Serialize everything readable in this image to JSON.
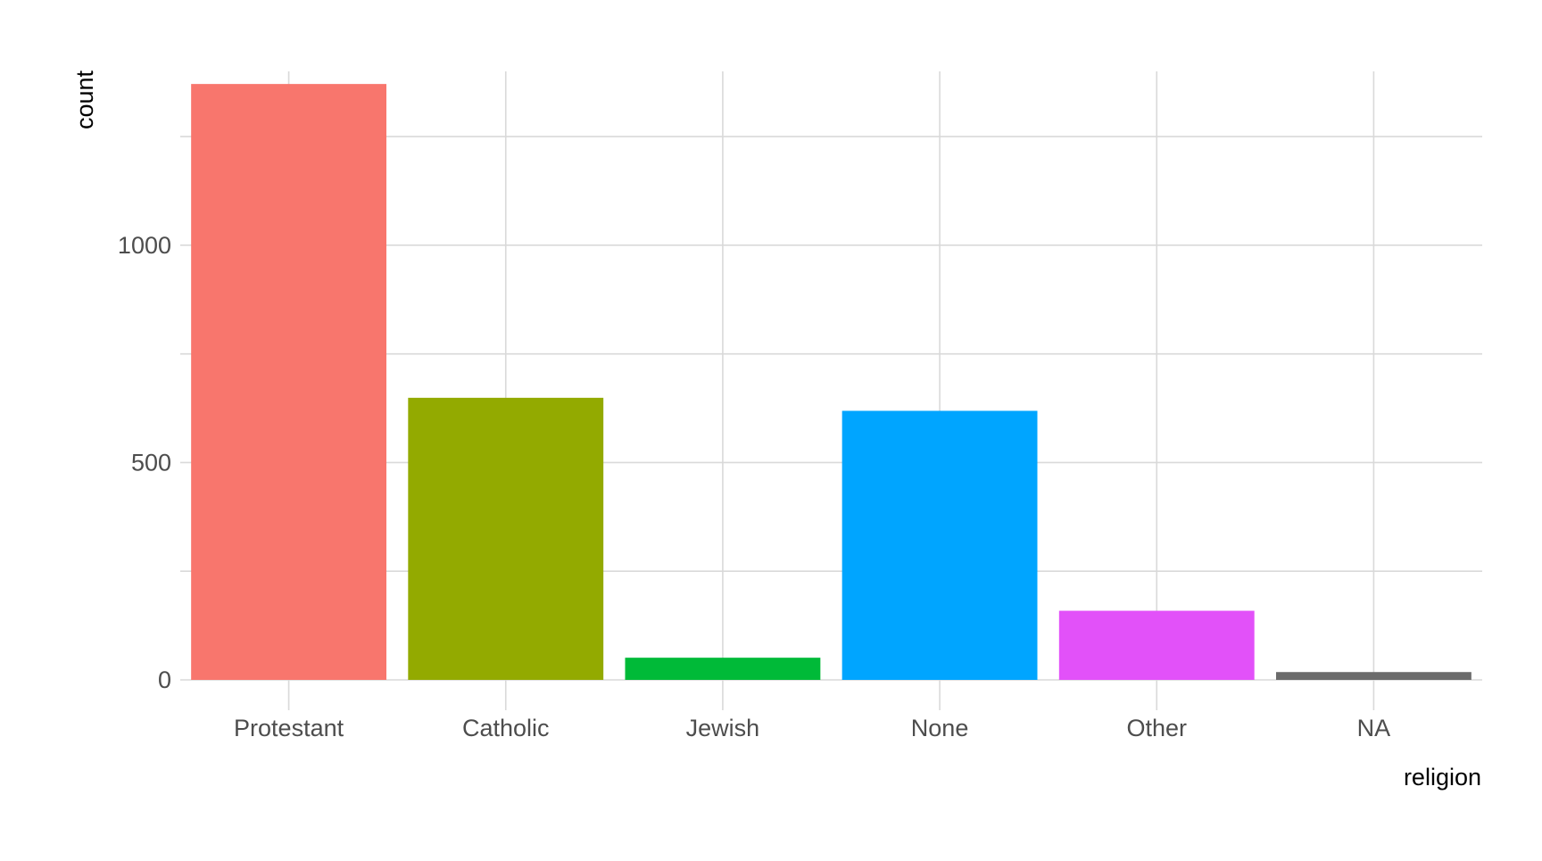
{
  "chart_data": {
    "type": "bar",
    "title": "",
    "xlabel": "religion",
    "ylabel": "count",
    "categories": [
      "Protestant",
      "Catholic",
      "Jewish",
      "None",
      "Other",
      "NA"
    ],
    "values": [
      1371,
      649,
      51,
      619,
      159,
      18
    ],
    "colors": [
      "#F8766D",
      "#93AA00",
      "#00BA38",
      "#00A5FF",
      "#E251F9",
      "#6B6B6B"
    ],
    "ylim": [
      0,
      1400
    ],
    "y_ticks": [
      0,
      500,
      1000
    ],
    "y_minor_ticks": [
      250,
      750,
      1250
    ],
    "y_tick_labels": [
      "0",
      "500",
      "1000"
    ],
    "grid": true,
    "legend": "none"
  }
}
